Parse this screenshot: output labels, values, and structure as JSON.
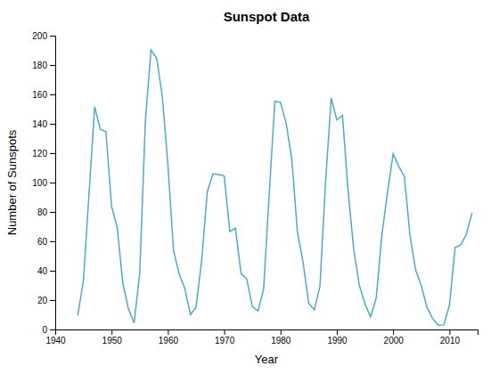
{
  "chart_data": {
    "type": "line",
    "title": "Sunspot Data",
    "xlabel": "Year",
    "ylabel": "Number of Sunspots",
    "color": "#4DAACC",
    "xlim": [
      1940,
      2015
    ],
    "ylim": [
      0,
      200
    ],
    "xticks": [
      1940,
      1950,
      1960,
      1970,
      1980,
      1990,
      2000,
      2010
    ],
    "yticks": [
      0,
      20,
      40,
      60,
      80,
      100,
      120,
      140,
      160,
      180,
      200
    ],
    "x": [
      1944,
      1945,
      1946,
      1947,
      1948,
      1949,
      1950,
      1951,
      1952,
      1953,
      1954,
      1955,
      1956,
      1957,
      1958,
      1959,
      1960,
      1961,
      1962,
      1963,
      1964,
      1965,
      1966,
      1967,
      1968,
      1969,
      1970,
      1971,
      1972,
      1973,
      1974,
      1975,
      1976,
      1977,
      1978,
      1979,
      1980,
      1981,
      1982,
      1983,
      1984,
      1985,
      1986,
      1987,
      1988,
      1989,
      1990,
      1991,
      1992,
      1993,
      1994,
      1995,
      1996,
      1997,
      1998,
      1999,
      2000,
      2001,
      2002,
      2003,
      2004,
      2005,
      2006,
      2007,
      2008,
      2009,
      2010,
      2011,
      2012,
      2013,
      2014
    ],
    "values": [
      9.6,
      33.2,
      92.6,
      151.6,
      136.3,
      134.7,
      83.9,
      69.4,
      31.5,
      13.9,
      4.4,
      38.0,
      141.7,
      190.2,
      184.8,
      159.0,
      112.3,
      53.9,
      37.7,
      27.9,
      10.2,
      15.1,
      47.0,
      93.8,
      105.9,
      105.5,
      104.5,
      66.6,
      68.9,
      38.0,
      34.5,
      15.5,
      12.6,
      27.5,
      92.5,
      155.4,
      154.6,
      140.4,
      115.9,
      66.6,
      45.9,
      17.9,
      13.4,
      29.4,
      100.2,
      157.6,
      142.6,
      145.7,
      94.3,
      54.6,
      29.9,
      17.5,
      8.6,
      21.5,
      64.3,
      93.3,
      119.6,
      111.0,
      104.0,
      63.7,
      40.4,
      29.8,
      15.2,
      7.5,
      2.9,
      3.1,
      16.5,
      55.7,
      57.6,
      64.7,
      79.3
    ]
  }
}
